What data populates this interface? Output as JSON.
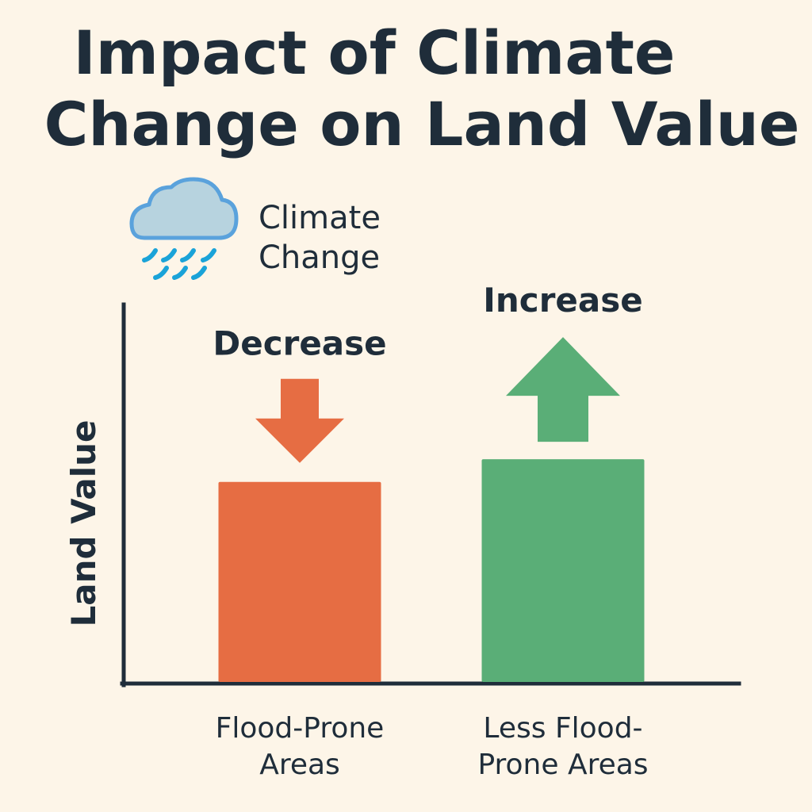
{
  "title": {
    "line1": "Impact of Climate",
    "line2": "Change on Land Value"
  },
  "icon": {
    "name": "rain-cloud-icon",
    "label_line1": "Climate",
    "label_line2": "Change"
  },
  "colors": {
    "background": "#fdf5e8",
    "text": "#1f2d3a",
    "flood_prone": "#e66d43",
    "less_flood_prone": "#5aae77",
    "cloud_fill": "#b7d3df",
    "cloud_stroke": "#5aa2dc",
    "rain": "#1aa3d8"
  },
  "chart_data": {
    "type": "bar",
    "title": "Impact of Climate Change on Land Value",
    "xlabel": "",
    "ylabel": "Land Value",
    "ylim": [
      0,
      100
    ],
    "grid": false,
    "categories": [
      [
        "Flood-Prone",
        "Areas"
      ],
      [
        "Less Flood-",
        "Prone Areas"
      ]
    ],
    "values": [
      53,
      59
    ],
    "annotations": [
      {
        "category_index": 0,
        "text": "Decrease",
        "arrow": "down"
      },
      {
        "category_index": 1,
        "text": "Increase",
        "arrow": "up"
      }
    ]
  }
}
